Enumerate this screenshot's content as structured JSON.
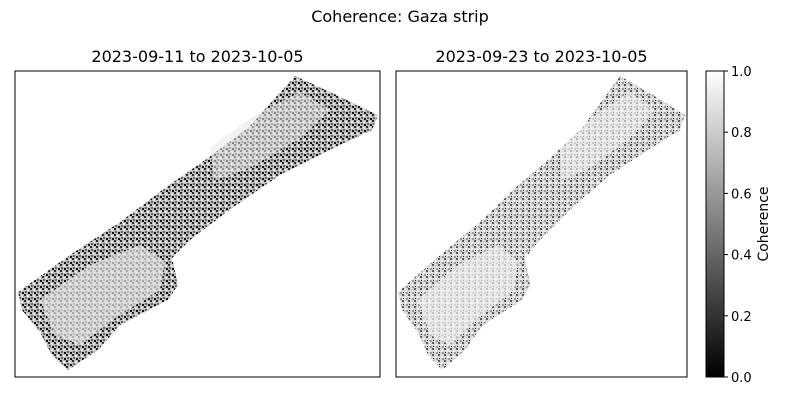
{
  "chart_data": {
    "type": "heatmap",
    "suptitle": "Coherence: Gaza strip",
    "colormap": "gray",
    "panels": [
      {
        "title": "2023-09-11 to 2023-10-05",
        "mean_coherence_estimate": 0.58,
        "ticks_visible": false
      },
      {
        "title": "2023-09-23 to 2023-10-05",
        "mean_coherence_estimate": 0.72,
        "ticks_visible": false
      }
    ],
    "colorbar": {
      "label": "Coherence",
      "range": [
        0.0,
        1.0
      ],
      "ticks": [
        0.0,
        0.2,
        0.4,
        0.6,
        0.8,
        1.0
      ],
      "tick_labels": [
        "0.0",
        "0.2",
        "0.4",
        "0.6",
        "0.8",
        "1.0"
      ],
      "colors": {
        "low": "#000000",
        "high": "#ffffff"
      }
    }
  }
}
